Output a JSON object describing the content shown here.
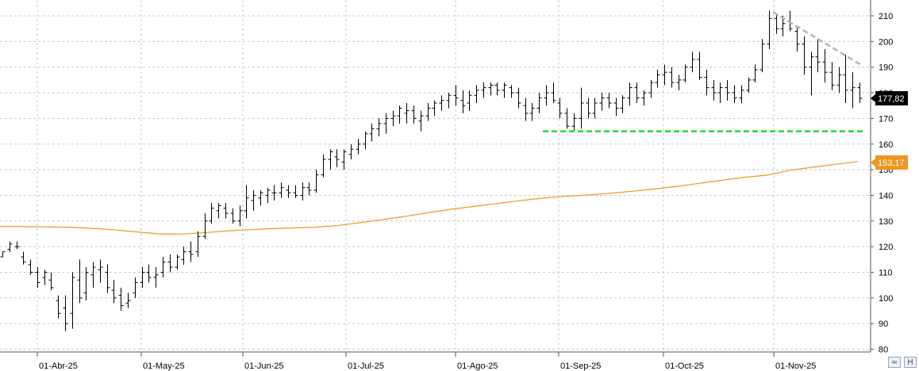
{
  "chart_data": {
    "type": "ohlc",
    "title": "",
    "xlabel": "",
    "ylabel": "",
    "ylim": [
      78,
      215
    ],
    "y_ticks": [
      "210",
      "200",
      "190",
      "180",
      "170",
      "160",
      "150",
      "140",
      "130",
      "120",
      "110",
      "100",
      "90",
      "80"
    ],
    "x_ticks": [
      "01-Abr-25",
      "01-May-25",
      "01-Jun-25",
      "01-Jul-25",
      "01-Ago-25",
      "01-Sep-25",
      "01-Oct-25",
      "01-Nov-25"
    ],
    "grid": true,
    "last_price": "177,82",
    "ma_last": "153,17",
    "colors": {
      "bars": "#000000",
      "ma": "#f0961e",
      "support": "#22dd22",
      "resistance": "#b4b4b4",
      "grid": "#c8c8c8"
    },
    "moving_average": [
      127.8,
      127.8,
      127.7,
      127.6,
      127.2,
      126.6,
      125.8,
      125.0,
      124.9,
      125.4,
      126.1,
      126.6,
      127.0,
      127.3,
      127.6,
      128.3,
      129.4,
      130.6,
      131.9,
      133.3,
      134.6,
      135.7,
      136.8,
      137.9,
      138.9,
      139.6,
      140.1,
      140.8,
      141.6,
      142.5,
      143.5,
      144.7,
      145.9,
      147.1,
      147.9,
      149.8,
      151.0,
      152.1,
      153.17
    ],
    "support_level": 165,
    "resistance_line": {
      "start": 211.5,
      "end": 190.5
    },
    "ohlc": [
      [
        116,
        118,
        116,
        118
      ],
      [
        119,
        122,
        118,
        121
      ],
      [
        120,
        122,
        119,
        120
      ],
      [
        116,
        118,
        113,
        114
      ],
      [
        113,
        115,
        109,
        110
      ],
      [
        110,
        112,
        104,
        106
      ],
      [
        108,
        111,
        105,
        110
      ],
      [
        107,
        110,
        103,
        104
      ],
      [
        99,
        101,
        92,
        94
      ],
      [
        96,
        101,
        87,
        90
      ],
      [
        94,
        110,
        88,
        108
      ],
      [
        107,
        115,
        98,
        100
      ],
      [
        102,
        112,
        99,
        110
      ],
      [
        109,
        114,
        104,
        112
      ],
      [
        111,
        115,
        106,
        112
      ],
      [
        110,
        113,
        102,
        104
      ],
      [
        103,
        107,
        98,
        100
      ],
      [
        101,
        104,
        95,
        97
      ],
      [
        98,
        102,
        96,
        99
      ],
      [
        102,
        108,
        100,
        106
      ],
      [
        106,
        112,
        104,
        110
      ],
      [
        110,
        113,
        106,
        108
      ],
      [
        108,
        112,
        104,
        109
      ],
      [
        110,
        116,
        108,
        114
      ],
      [
        114,
        117,
        110,
        112
      ],
      [
        112,
        117,
        111,
        116
      ],
      [
        115,
        120,
        113,
        118
      ],
      [
        118,
        122,
        114,
        117
      ],
      [
        118,
        126,
        116,
        124
      ],
      [
        124,
        133,
        123,
        130
      ],
      [
        130,
        137,
        129,
        135
      ],
      [
        134,
        137,
        131,
        136
      ],
      [
        135,
        137,
        131,
        133
      ],
      [
        133,
        135,
        129,
        130
      ],
      [
        130,
        136,
        128,
        134
      ],
      [
        134,
        144,
        131,
        139
      ],
      [
        138,
        142,
        134,
        140
      ],
      [
        139,
        142,
        136,
        141
      ],
      [
        140,
        143,
        137,
        142
      ],
      [
        141,
        144,
        138,
        141
      ],
      [
        141,
        145,
        139,
        143
      ],
      [
        142,
        144,
        139,
        141
      ],
      [
        141,
        144,
        139,
        140
      ],
      [
        140,
        145,
        138,
        143
      ],
      [
        143,
        145,
        140,
        142
      ],
      [
        142,
        150,
        141,
        148
      ],
      [
        148,
        156,
        147,
        154
      ],
      [
        154,
        158,
        150,
        157
      ],
      [
        155,
        158,
        151,
        154
      ],
      [
        153,
        158,
        150,
        157
      ],
      [
        156,
        160,
        154,
        158
      ],
      [
        158,
        162,
        156,
        160
      ],
      [
        160,
        165,
        158,
        164
      ],
      [
        164,
        168,
        161,
        166
      ],
      [
        166,
        170,
        163,
        168
      ],
      [
        168,
        172,
        164,
        170
      ],
      [
        170,
        173,
        167,
        171
      ],
      [
        171,
        175,
        168,
        174
      ],
      [
        172,
        176,
        168,
        173
      ],
      [
        173,
        175,
        168,
        170
      ],
      [
        169,
        173,
        165,
        171
      ],
      [
        171,
        176,
        169,
        174
      ],
      [
        174,
        177,
        171,
        176
      ],
      [
        176,
        179,
        173,
        177
      ],
      [
        177,
        180,
        174,
        179
      ],
      [
        179,
        183,
        175,
        178
      ],
      [
        177,
        181,
        172,
        175
      ],
      [
        176,
        181,
        173,
        179
      ],
      [
        179,
        183,
        176,
        181
      ],
      [
        181,
        184,
        178,
        182
      ],
      [
        182,
        184,
        179,
        183
      ],
      [
        183,
        184,
        179,
        181
      ],
      [
        181,
        184,
        178,
        183
      ],
      [
        182,
        183,
        178,
        180
      ],
      [
        180,
        182,
        174,
        176
      ],
      [
        175,
        178,
        169,
        172
      ],
      [
        172,
        176,
        169,
        174
      ],
      [
        174,
        180,
        172,
        178
      ],
      [
        178,
        183,
        175,
        180
      ],
      [
        180,
        184,
        176,
        177
      ],
      [
        176,
        178,
        170,
        172
      ],
      [
        172,
        174,
        166,
        167
      ],
      [
        167,
        172,
        165,
        170
      ],
      [
        170,
        182,
        166,
        176
      ],
      [
        176,
        178,
        170,
        172
      ],
      [
        172,
        178,
        170,
        176
      ],
      [
        176,
        180,
        173,
        178
      ],
      [
        178,
        180,
        174,
        176
      ],
      [
        176,
        178,
        171,
        174
      ],
      [
        174,
        179,
        172,
        178
      ],
      [
        178,
        184,
        175,
        182
      ],
      [
        182,
        184,
        176,
        178
      ],
      [
        178,
        181,
        175,
        180
      ],
      [
        180,
        185,
        178,
        184
      ],
      [
        184,
        189,
        182,
        187
      ],
      [
        187,
        191,
        183,
        188
      ],
      [
        188,
        190,
        182,
        184
      ],
      [
        184,
        187,
        181,
        185
      ],
      [
        185,
        191,
        184,
        190
      ],
      [
        190,
        196,
        188,
        193
      ],
      [
        193,
        196,
        185,
        186
      ],
      [
        186,
        189,
        179,
        182
      ],
      [
        182,
        185,
        177,
        180
      ],
      [
        180,
        184,
        176,
        182
      ],
      [
        182,
        185,
        177,
        180
      ],
      [
        180,
        183,
        176,
        178
      ],
      [
        178,
        183,
        176,
        181
      ],
      [
        181,
        186,
        180,
        185
      ],
      [
        185,
        191,
        184,
        189
      ],
      [
        189,
        201,
        188,
        199
      ],
      [
        199,
        212,
        197,
        209
      ],
      [
        209,
        211,
        203,
        205
      ],
      [
        205,
        210,
        202,
        207
      ],
      [
        208,
        212,
        204,
        205
      ],
      [
        204,
        206,
        196,
        199
      ],
      [
        199,
        202,
        187,
        190
      ],
      [
        190,
        196,
        179,
        194
      ],
      [
        194,
        201,
        188,
        192
      ],
      [
        192,
        197,
        184,
        188
      ],
      [
        188,
        192,
        181,
        183
      ],
      [
        183,
        190,
        180,
        187
      ],
      [
        187,
        195,
        176,
        181
      ],
      [
        181,
        188,
        174,
        182
      ],
      [
        182,
        184,
        176,
        177.82
      ]
    ]
  }
}
